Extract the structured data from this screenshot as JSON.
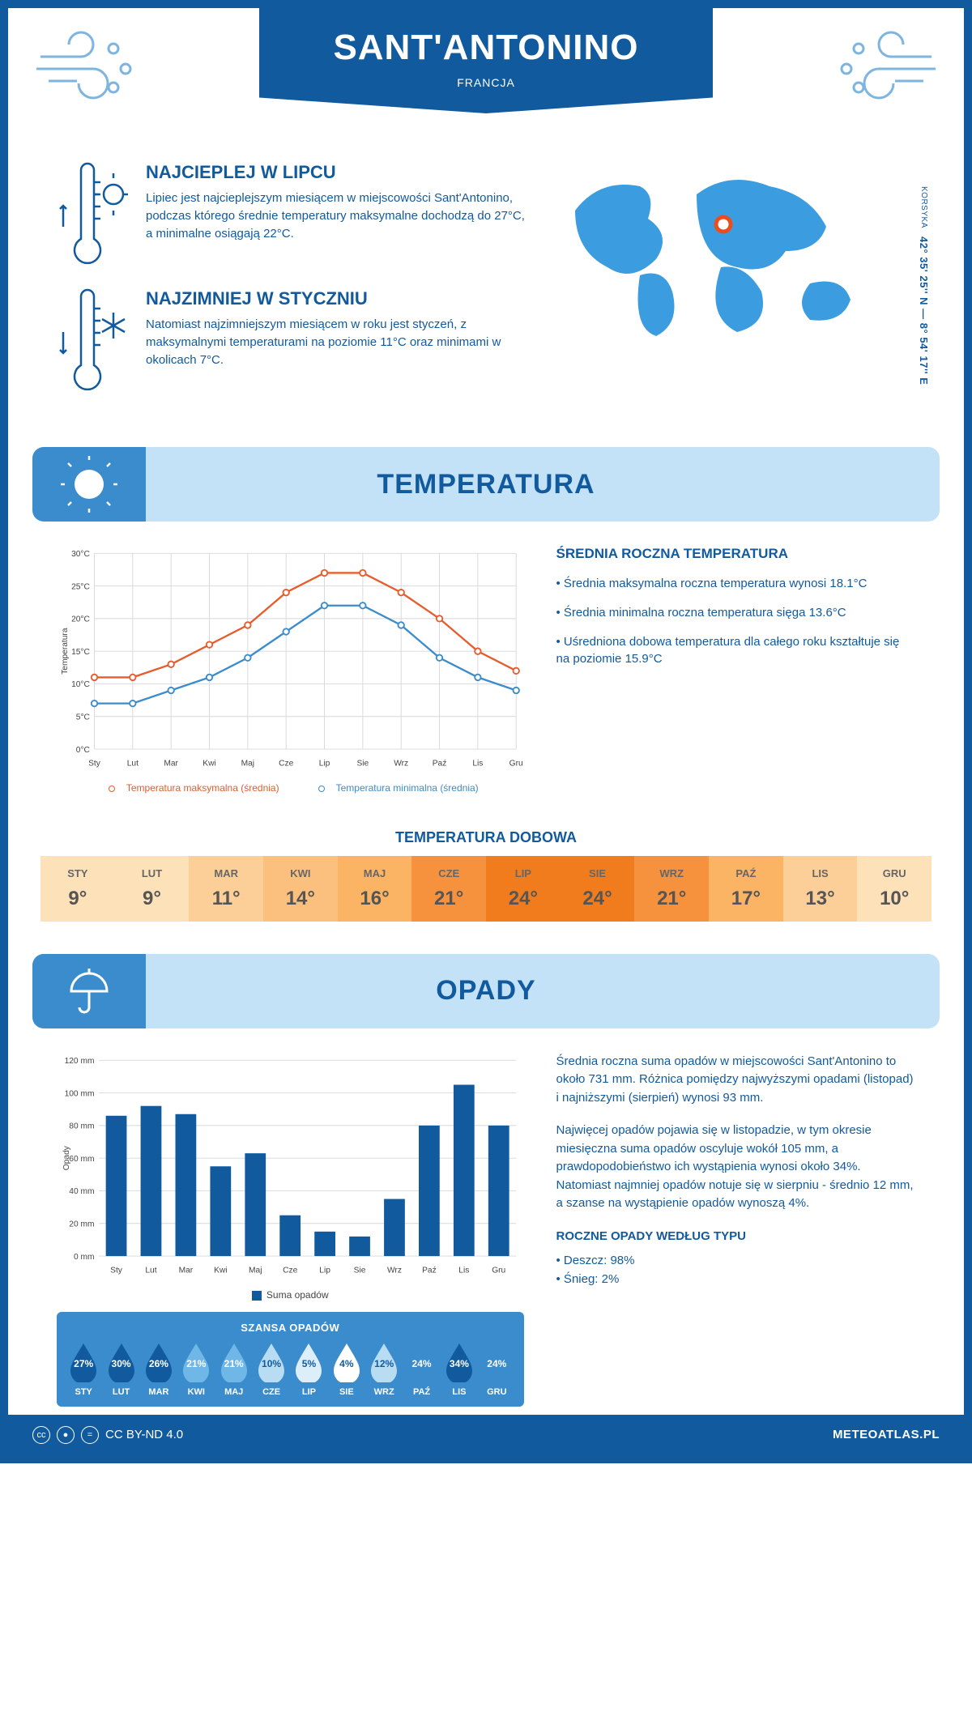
{
  "header": {
    "city": "SANT'ANTONINO",
    "country": "FRANCJA"
  },
  "coords": {
    "region": "KORSYKA",
    "value": "42° 35' 25'' N — 8° 54' 17'' E"
  },
  "intro": {
    "hot": {
      "title": "NAJCIEPLEJ W LIPCU",
      "text": "Lipiec jest najcieplejszym miesiącem w miejscowości Sant'Antonino, podczas którego średnie temperatury maksymalne dochodzą do 27°C, a minimalne osiągają 22°C."
    },
    "cold": {
      "title": "NAJZIMNIEJ W STYCZNIU",
      "text": "Natomiast najzimniejszym miesiącem w roku jest styczeń, z maksymalnymi temperaturami na poziomie 11°C oraz minimami w okolicach 7°C."
    }
  },
  "map": {
    "marker_color": "#e84f1c"
  },
  "temperature": {
    "section_title": "TEMPERATURA",
    "summary": {
      "title": "ŚREDNIA ROCZNA TEMPERATURA",
      "bullets": [
        "• Średnia maksymalna roczna temperatura wynosi 18.1°C",
        "• Średnia minimalna roczna temperatura sięga 13.6°C",
        "• Uśredniona dobowa temperatura dla całego roku kształtuje się na poziomie 15.9°C"
      ]
    },
    "chart": {
      "months": [
        "Sty",
        "Lut",
        "Mar",
        "Kwi",
        "Maj",
        "Cze",
        "Lip",
        "Sie",
        "Wrz",
        "Paź",
        "Lis",
        "Gru"
      ],
      "max_series": [
        11,
        11,
        13,
        16,
        19,
        24,
        27,
        27,
        24,
        20,
        15,
        12
      ],
      "min_series": [
        7,
        7,
        9,
        11,
        14,
        18,
        22,
        22,
        19,
        14,
        11,
        9
      ],
      "y_axis_label": "Temperatura",
      "ylim": [
        0,
        30
      ],
      "ytick_step": 5,
      "y_tick_suffix": "°C",
      "max_color": "#e85b2c",
      "min_color": "#3b8ccc",
      "grid_color": "#d6d8de",
      "legend_max": "Temperatura maksymalna (średnia)",
      "legend_min": "Temperatura minimalna (średnia)"
    },
    "daily": {
      "title": "TEMPERATURA DOBOWA",
      "months": [
        "STY",
        "LUT",
        "MAR",
        "KWI",
        "MAJ",
        "CZE",
        "LIP",
        "SIE",
        "WRZ",
        "PAŹ",
        "LIS",
        "GRU"
      ],
      "values": [
        "9°",
        "9°",
        "11°",
        "14°",
        "16°",
        "21°",
        "24°",
        "24°",
        "21°",
        "17°",
        "13°",
        "10°"
      ],
      "colors": [
        "#fde1b8",
        "#fde1b8",
        "#fccf98",
        "#fbc07e",
        "#fbb464",
        "#f6923e",
        "#f07c1e",
        "#f07c1e",
        "#f6923e",
        "#fbb464",
        "#fccf98",
        "#fde1b8"
      ]
    }
  },
  "precip": {
    "section_title": "OPADY",
    "chart": {
      "months": [
        "Sty",
        "Lut",
        "Mar",
        "Kwi",
        "Maj",
        "Cze",
        "Lip",
        "Sie",
        "Wrz",
        "Paź",
        "Lis",
        "Gru"
      ],
      "values": [
        86,
        92,
        87,
        55,
        63,
        25,
        15,
        12,
        35,
        80,
        105,
        80
      ],
      "y_axis_label": "Opady",
      "ylim": [
        0,
        120
      ],
      "ytick_step": 20,
      "y_tick_suffix": " mm",
      "bar_color": "#115a9e",
      "grid_color": "#d6d8de",
      "legend": "Suma opadów"
    },
    "text1": "Średnia roczna suma opadów w miejscowości Sant'Antonino to około 731 mm. Różnica pomiędzy najwyższymi opadami (listopad) i najniższymi (sierpień) wynosi 93 mm.",
    "text2": "Najwięcej opadów pojawia się w listopadzie, w tym okresie miesięczna suma opadów oscyluje wokół 105 mm, a prawdopodobieństwo ich wystąpienia wynosi około 34%. Natomiast najmniej opadów notuje się w sierpniu - średnio 12 mm, a szanse na wystąpienie opadów wynoszą 4%.",
    "by_type": {
      "title": "ROCZNE OPADY WEDŁUG TYPU",
      "rain": "• Deszcz: 98%",
      "snow": "• Śnieg: 2%"
    },
    "chance": {
      "title": "SZANSA OPADÓW",
      "months": [
        "STY",
        "LUT",
        "MAR",
        "KWI",
        "MAJ",
        "CZE",
        "LIP",
        "SIE",
        "WRZ",
        "PAŹ",
        "LIS",
        "GRU"
      ],
      "percents": [
        "27%",
        "30%",
        "26%",
        "21%",
        "21%",
        "10%",
        "5%",
        "4%",
        "12%",
        "24%",
        "34%",
        "24%"
      ],
      "fill_colors": [
        "#115a9e",
        "#115a9e",
        "#115a9e",
        "#6fb7e6",
        "#6fb7e6",
        "#b8dcf1",
        "#dceefa",
        "#ffffff",
        "#b8dcf1",
        "#3b8ccc",
        "#115a9e",
        "#3b8ccc"
      ],
      "text_colors": [
        "#ffffff",
        "#ffffff",
        "#ffffff",
        "#ffffff",
        "#ffffff",
        "#115a9e",
        "#115a9e",
        "#115a9e",
        "#115a9e",
        "#ffffff",
        "#ffffff",
        "#ffffff"
      ]
    }
  },
  "footer": {
    "license": "CC BY-ND 4.0",
    "brand": "METEOATLAS.PL"
  },
  "colors": {
    "primary": "#115a9e",
    "light_blue": "#c3e2f7",
    "mid_blue": "#3b8ccc"
  }
}
